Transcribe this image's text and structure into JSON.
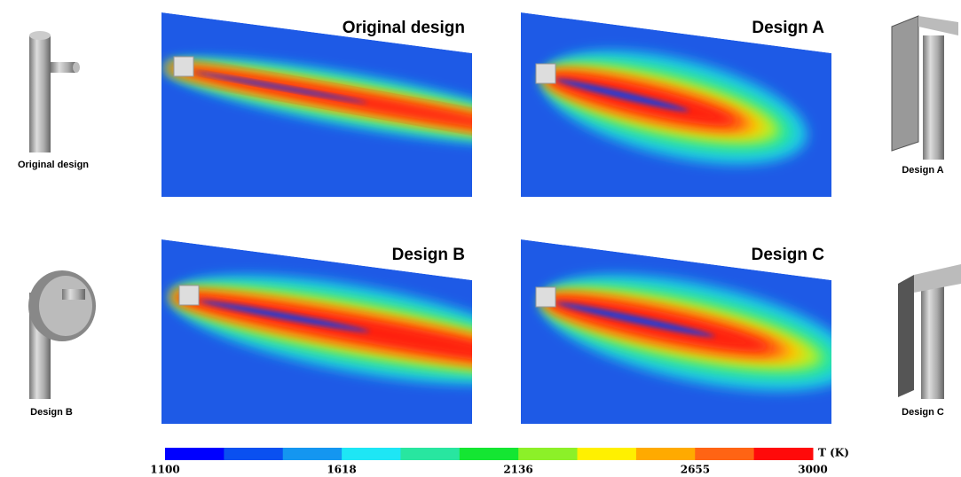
{
  "panels": [
    "Original design",
    "Design A",
    "Design B",
    "Design C"
  ],
  "side_labels": [
    "Original design",
    "Design A",
    "Design B",
    "Design C"
  ],
  "colorbar": {
    "label": "T (K)",
    "range": [
      1100,
      3000
    ],
    "ticks": [
      1100,
      1618,
      2136,
      2655,
      3000
    ],
    "colors": [
      "#0000ff",
      "#0a50f0",
      "#1496f0",
      "#1ee6f5",
      "#28e6a0",
      "#14e632",
      "#8cf028",
      "#fff000",
      "#ffaa00",
      "#ff6414",
      "#ff0a0a"
    ]
  }
}
